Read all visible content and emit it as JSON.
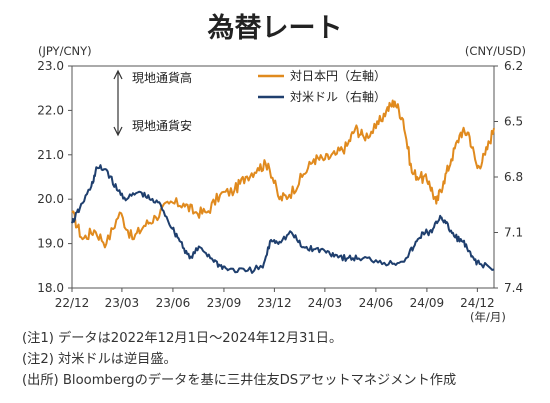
{
  "header": {
    "title": "為替レート"
  },
  "axes": {
    "left_unit": "(JPY/CNY)",
    "right_unit": "(CNY/USD)",
    "x_unit": "(年/月)"
  },
  "annotation": {
    "up_label": "現地通貨高",
    "down_label": "現地通貨安"
  },
  "notes": [
    "(注1) データは2022年12月1日～2024年12月31日。",
    "(注2) 対米ドルは逆目盛。",
    "(出所) Bloombergのデータを基に三井住友DSアセットマネジメント作成"
  ],
  "colors": {
    "jpy": "#E08A1E",
    "usd": "#1F3F6E",
    "axis": "#555555"
  },
  "chart_data": {
    "type": "line",
    "title": "為替レート",
    "x_ticks": [
      "22/12",
      "23/03",
      "23/06",
      "23/09",
      "23/12",
      "24/03",
      "24/06",
      "24/09",
      "24/12"
    ],
    "left_axis": {
      "label": "(JPY/CNY)",
      "ticks": [
        18.0,
        19.0,
        20.0,
        21.0,
        22.0,
        23.0
      ],
      "range": [
        18.0,
        23.0
      ]
    },
    "right_axis": {
      "label": "(CNY/USD)",
      "ticks": [
        6.2,
        6.5,
        6.8,
        7.1,
        7.4
      ],
      "range": [
        6.2,
        7.4
      ],
      "inverted": true
    },
    "x_range": [
      "2022-12-01",
      "2024-12-31"
    ],
    "legend_position": "top-center",
    "series": [
      {
        "name": "対日本円（左軸）",
        "axis": "left",
        "points": [
          [
            "2022-12-01",
            19.7
          ],
          [
            "2022-12-20",
            19.1
          ],
          [
            "2023-01-10",
            19.3
          ],
          [
            "2023-02-01",
            19.0
          ],
          [
            "2023-02-25",
            19.7
          ],
          [
            "2023-03-20",
            19.1
          ],
          [
            "2023-04-10",
            19.4
          ],
          [
            "2023-05-01",
            19.6
          ],
          [
            "2023-05-25",
            19.9
          ],
          [
            "2023-06-20",
            19.9
          ],
          [
            "2023-07-10",
            19.7
          ],
          [
            "2023-08-01",
            19.7
          ],
          [
            "2023-08-25",
            20.1
          ],
          [
            "2023-09-20",
            20.2
          ],
          [
            "2023-10-10",
            20.5
          ],
          [
            "2023-11-01",
            20.7
          ],
          [
            "2023-11-20",
            20.8
          ],
          [
            "2023-12-10",
            20.0
          ],
          [
            "2023-12-28",
            20.1
          ],
          [
            "2024-01-20",
            20.5
          ],
          [
            "2024-02-10",
            20.9
          ],
          [
            "2024-03-01",
            20.9
          ],
          [
            "2024-03-20",
            21.0
          ],
          [
            "2024-04-10",
            21.2
          ],
          [
            "2024-04-25",
            21.6
          ],
          [
            "2024-05-10",
            21.4
          ],
          [
            "2024-06-01",
            21.6
          ],
          [
            "2024-06-20",
            22.0
          ],
          [
            "2024-07-05",
            22.2
          ],
          [
            "2024-07-20",
            21.8
          ],
          [
            "2024-08-05",
            20.6
          ],
          [
            "2024-08-20",
            20.5
          ],
          [
            "2024-09-05",
            20.4
          ],
          [
            "2024-09-18",
            19.9
          ],
          [
            "2024-10-01",
            20.4
          ],
          [
            "2024-10-15",
            20.9
          ],
          [
            "2024-11-01",
            21.5
          ],
          [
            "2024-11-15",
            21.5
          ],
          [
            "2024-12-01",
            20.7
          ],
          [
            "2024-12-15",
            21.0
          ],
          [
            "2024-12-31",
            21.6
          ]
        ]
      },
      {
        "name": "対米ドル（右軸）",
        "axis": "right",
        "points": [
          [
            "2022-12-01",
            7.05
          ],
          [
            "2022-12-15",
            6.97
          ],
          [
            "2023-01-05",
            6.85
          ],
          [
            "2023-01-15",
            6.75
          ],
          [
            "2023-02-01",
            6.76
          ],
          [
            "2023-02-20",
            6.87
          ],
          [
            "2023-03-10",
            6.92
          ],
          [
            "2023-04-01",
            6.88
          ],
          [
            "2023-04-20",
            6.92
          ],
          [
            "2023-05-10",
            6.95
          ],
          [
            "2023-05-31",
            7.08
          ],
          [
            "2023-06-15",
            7.15
          ],
          [
            "2023-07-01",
            7.24
          ],
          [
            "2023-07-20",
            7.18
          ],
          [
            "2023-08-10",
            7.24
          ],
          [
            "2023-08-25",
            7.28
          ],
          [
            "2023-09-10",
            7.3
          ],
          [
            "2023-10-10",
            7.31
          ],
          [
            "2023-11-10",
            7.29
          ],
          [
            "2023-11-25",
            7.14
          ],
          [
            "2023-12-10",
            7.15
          ],
          [
            "2024-01-01",
            7.1
          ],
          [
            "2024-01-20",
            7.18
          ],
          [
            "2024-02-10",
            7.19
          ],
          [
            "2024-03-01",
            7.2
          ],
          [
            "2024-03-20",
            7.22
          ],
          [
            "2024-04-10",
            7.24
          ],
          [
            "2024-05-01",
            7.24
          ],
          [
            "2024-06-01",
            7.25
          ],
          [
            "2024-07-01",
            7.27
          ],
          [
            "2024-07-25",
            7.24
          ],
          [
            "2024-08-10",
            7.17
          ],
          [
            "2024-08-25",
            7.1
          ],
          [
            "2024-09-10",
            7.1
          ],
          [
            "2024-09-25",
            7.01
          ],
          [
            "2024-10-05",
            7.05
          ],
          [
            "2024-10-20",
            7.12
          ],
          [
            "2024-11-05",
            7.15
          ],
          [
            "2024-11-20",
            7.23
          ],
          [
            "2024-12-05",
            7.27
          ],
          [
            "2024-12-31",
            7.3
          ]
        ]
      }
    ]
  }
}
